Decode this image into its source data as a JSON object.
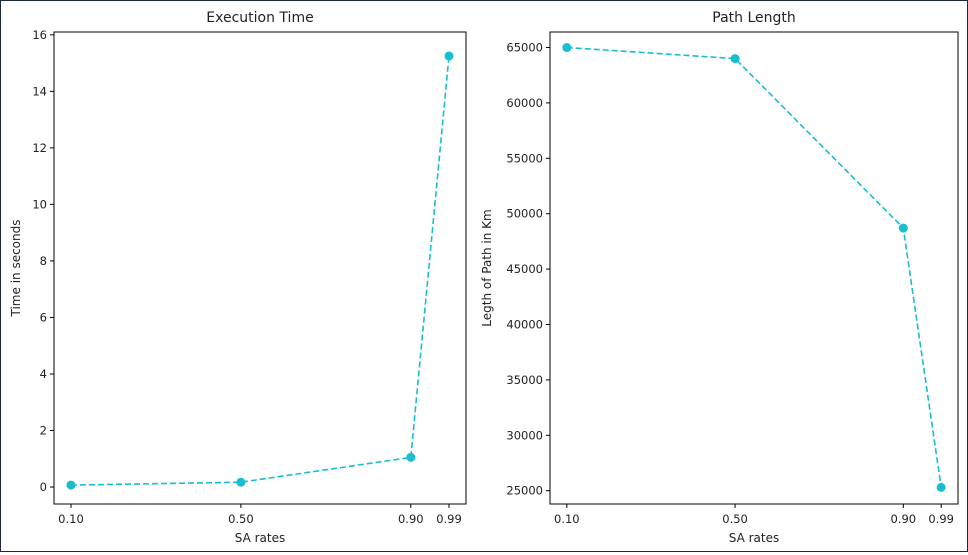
{
  "chart_data": [
    {
      "type": "line",
      "title": "Execution Time",
      "xlabel": "SA rates",
      "ylabel": "Time in seconds",
      "x": [
        0.1,
        0.5,
        0.9,
        0.99
      ],
      "x_tick_labels": [
        "0.10",
        "0.50",
        "0.90",
        "0.99"
      ],
      "series": [
        {
          "values": [
            0.07,
            0.17,
            1.05,
            15.25
          ]
        }
      ],
      "ylim": [
        -0.6,
        16.1
      ],
      "xlim": [
        0.06,
        1.03
      ],
      "y_ticks": [
        0,
        2,
        4,
        6,
        8,
        10,
        12,
        14,
        16
      ],
      "y_tick_labels": [
        "0",
        "2",
        "4",
        "6",
        "8",
        "10",
        "12",
        "14",
        "16"
      ],
      "grid": false,
      "line_style": "dashed",
      "marker": "circle",
      "color": "#17becf"
    },
    {
      "type": "line",
      "title": "Path Length",
      "xlabel": "SA rates",
      "ylabel": "Legth of Path in Km",
      "x": [
        0.1,
        0.5,
        0.9,
        0.99
      ],
      "x_tick_labels": [
        "0.10",
        "0.50",
        "0.90",
        "0.99"
      ],
      "series": [
        {
          "values": [
            65000,
            64000,
            48700,
            25300
          ]
        }
      ],
      "ylim": [
        23800,
        66400
      ],
      "xlim": [
        0.06,
        1.03
      ],
      "y_ticks": [
        25000,
        30000,
        35000,
        40000,
        45000,
        50000,
        55000,
        60000,
        65000
      ],
      "y_tick_labels": [
        "25000",
        "30000",
        "35000",
        "40000",
        "45000",
        "50000",
        "55000",
        "60000",
        "65000"
      ],
      "grid": false,
      "line_style": "dashed",
      "marker": "circle",
      "color": "#17becf"
    }
  ]
}
